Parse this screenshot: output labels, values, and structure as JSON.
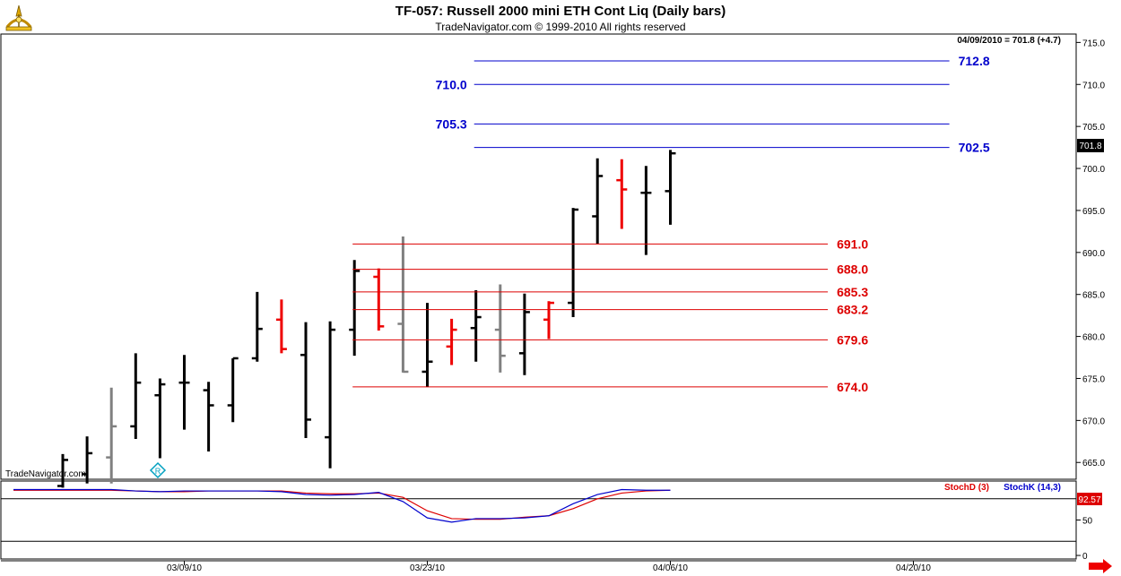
{
  "header": {
    "title": "TF-057:  Russell 2000 mini ETH Cont Liq  (Daily bars)",
    "subtitle": "TradeNavigator.com © 1999-2010 All rights reserved",
    "logo_icon": "sextant-logo-icon"
  },
  "price_info": "04/09/2010 = 701.8 (+4.7)",
  "watermark": "TradeNavigator.com",
  "last_price_label": "701.8",
  "stoch_last_label": "92.57",
  "colors": {
    "up_bar": "#000000",
    "down_bar": "#ee0000",
    "neutral_bar": "#808080",
    "resistance_line": "#0000cc",
    "support_line": "#dd0000",
    "stoch_d": "#dd0000",
    "stoch_k": "#0000cc"
  },
  "chart_data": [
    {
      "type": "ohlc",
      "title": "TF-057:  Russell 2000 mini ETH Cont Liq  (Daily bars)",
      "ylim": [
        663,
        716
      ],
      "y_ticks": [
        "715.0",
        "710.0",
        "705.0",
        "700.0",
        "695.0",
        "690.0",
        "685.0",
        "680.0",
        "675.0",
        "670.0",
        "665.0"
      ],
      "x_ticks": [
        {
          "label": "03/09/10",
          "bar": 5
        },
        {
          "label": "03/23/10",
          "bar": 15
        },
        {
          "label": "04/06/10",
          "bar": 25
        },
        {
          "label": "04/20/10",
          "bar": 35
        }
      ],
      "bars": [
        {
          "o": 662.2,
          "h": 666.0,
          "l": 662.0,
          "c": 665.3,
          "color": "up"
        },
        {
          "o": 663.6,
          "h": 668.1,
          "l": 662.5,
          "c": 666.1,
          "color": "up"
        },
        {
          "o": 665.6,
          "h": 673.9,
          "l": 662.5,
          "c": 669.3,
          "color": "neutral"
        },
        {
          "o": 669.3,
          "h": 678.0,
          "l": 667.8,
          "c": 674.5,
          "color": "up"
        },
        {
          "o": 673.0,
          "h": 675.0,
          "l": 665.5,
          "c": 674.3,
          "color": "up"
        },
        {
          "o": 674.5,
          "h": 677.8,
          "l": 668.9,
          "c": 674.5,
          "color": "up"
        },
        {
          "o": 673.6,
          "h": 674.6,
          "l": 666.3,
          "c": 671.8,
          "color": "up"
        },
        {
          "o": 671.8,
          "h": 677.4,
          "l": 669.8,
          "c": 677.4,
          "color": "up"
        },
        {
          "o": 677.4,
          "h": 685.3,
          "l": 677.0,
          "c": 680.9,
          "color": "up"
        },
        {
          "o": 682.0,
          "h": 684.4,
          "l": 678.0,
          "c": 678.5,
          "color": "down"
        },
        {
          "o": 677.8,
          "h": 681.7,
          "l": 667.9,
          "c": 670.1,
          "color": "up"
        },
        {
          "o": 668.0,
          "h": 681.8,
          "l": 664.3,
          "c": 680.8,
          "color": "up"
        },
        {
          "o": 680.8,
          "h": 689.1,
          "l": 677.7,
          "c": 687.8,
          "color": "up"
        },
        {
          "o": 687.1,
          "h": 688.1,
          "l": 680.7,
          "c": 681.2,
          "color": "down"
        },
        {
          "o": 681.5,
          "h": 691.9,
          "l": 675.7,
          "c": 675.8,
          "color": "neutral"
        },
        {
          "o": 675.8,
          "h": 684.0,
          "l": 674.0,
          "c": 677.0,
          "color": "up"
        },
        {
          "o": 678.8,
          "h": 682.1,
          "l": 676.6,
          "c": 680.8,
          "color": "down"
        },
        {
          "o": 681.0,
          "h": 685.5,
          "l": 677.0,
          "c": 682.3,
          "color": "up"
        },
        {
          "o": 680.8,
          "h": 686.2,
          "l": 675.7,
          "c": 677.7,
          "color": "neutral"
        },
        {
          "o": 678.0,
          "h": 685.1,
          "l": 675.4,
          "c": 682.9,
          "color": "up"
        },
        {
          "o": 682.0,
          "h": 684.2,
          "l": 679.7,
          "c": 684.0,
          "color": "down"
        },
        {
          "o": 684.0,
          "h": 695.3,
          "l": 682.3,
          "c": 695.1,
          "color": "up"
        },
        {
          "o": 694.3,
          "h": 701.2,
          "l": 691.0,
          "c": 699.1,
          "color": "up"
        },
        {
          "o": 698.6,
          "h": 701.1,
          "l": 692.8,
          "c": 697.5,
          "color": "down"
        },
        {
          "o": 697.1,
          "h": 700.3,
          "l": 689.7,
          "c": 697.1,
          "color": "up"
        },
        {
          "o": 697.3,
          "h": 702.2,
          "l": 693.3,
          "c": 701.8,
          "color": "up"
        }
      ],
      "levels": [
        {
          "label": "712.8",
          "value": 712.8,
          "kind": "resistance",
          "from_bar": 17,
          "to_bar": 36,
          "label_side": "right"
        },
        {
          "label": "710.0",
          "value": 710.0,
          "kind": "resistance",
          "from_bar": 17,
          "to_bar": 36,
          "label_side": "left"
        },
        {
          "label": "705.3",
          "value": 705.3,
          "kind": "resistance",
          "from_bar": 17,
          "to_bar": 36,
          "label_side": "left"
        },
        {
          "label": "702.5",
          "value": 702.5,
          "kind": "resistance",
          "from_bar": 17,
          "to_bar": 36,
          "label_side": "right"
        },
        {
          "label": "691.0",
          "value": 691.0,
          "kind": "support",
          "from_bar": 12,
          "to_bar": 31,
          "label_side": "right"
        },
        {
          "label": "688.0",
          "value": 688.0,
          "kind": "support",
          "from_bar": 12,
          "to_bar": 31,
          "label_side": "right"
        },
        {
          "label": "685.3",
          "value": 685.3,
          "kind": "support",
          "from_bar": 12,
          "to_bar": 31,
          "label_side": "right"
        },
        {
          "label": "683.2",
          "value": 683.2,
          "kind": "support",
          "from_bar": 12,
          "to_bar": 31,
          "label_side": "right"
        },
        {
          "label": "679.6",
          "value": 679.6,
          "kind": "support",
          "from_bar": 12,
          "to_bar": 31,
          "label_side": "right"
        },
        {
          "label": "674.0",
          "value": 674.0,
          "kind": "support",
          "from_bar": 12,
          "to_bar": 31,
          "label_side": "right"
        }
      ]
    },
    {
      "type": "line",
      "title": "",
      "ylim": [
        -5,
        105
      ],
      "y_ticks": [
        "50",
        "0"
      ],
      "series": [
        {
          "name": "StochD (3)",
          "color": "#dd0000",
          "values": [
            92,
            92,
            92,
            91,
            90,
            90,
            91,
            91,
            91,
            91,
            88,
            87,
            87,
            88,
            82,
            63,
            52,
            51,
            51,
            54,
            56,
            66,
            80,
            88,
            91,
            92
          ]
        },
        {
          "name": "StochK (14,3)",
          "color": "#0000cc",
          "values": [
            93,
            93,
            93,
            91,
            90,
            91,
            91,
            91,
            91,
            90,
            86,
            85,
            86,
            89,
            76,
            53,
            47,
            52,
            52,
            53,
            56,
            73,
            86,
            93,
            92,
            92
          ]
        }
      ]
    }
  ]
}
